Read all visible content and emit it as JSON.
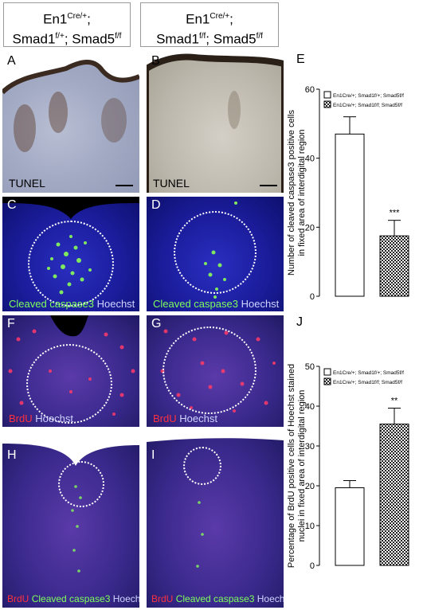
{
  "genotypes": {
    "control": {
      "line1": "En1",
      "sup1": "Cre/+",
      "line1b": ";",
      "line2": "Smad1",
      "sup2": "f/+",
      "line2b": "; Smad5",
      "sup3": "f/f"
    },
    "mutant": {
      "line1": "En1",
      "sup1": "Cre/+",
      "line1b": ";",
      "line2": "Smad1",
      "sup2": "f/f",
      "line2b": "; Smad5",
      "sup3": "f/f"
    }
  },
  "panel_labels": {
    "A": "A",
    "B": "B",
    "C": "C",
    "D": "D",
    "E": "E",
    "F": "F",
    "G": "G",
    "H": "H",
    "I": "I",
    "J": "J"
  },
  "captions": {
    "tunel": "TUNEL",
    "cc3": "Cleaved caspase3",
    "hoechst": "Hoechst",
    "brdu": "BrdU",
    "colors": {
      "green": "#7fff5a",
      "red": "#ff3040",
      "blue": "#d0d4ff"
    }
  },
  "chart_data": [
    {
      "type": "bar",
      "ylabel": "Number of cleaved caspase3 positive cells in fixed area of interdigital region",
      "ylim": [
        0,
        60
      ],
      "yticks": [
        0,
        20,
        40,
        60
      ],
      "series": [
        {
          "name": "En1Cre/+; Smad1f/+; Smad5f/f",
          "value": 47,
          "error": 5,
          "fill": "open"
        },
        {
          "name": "En1Cre/+; Smad1f/f; Smad5f/f",
          "value": 17.5,
          "error": 4.5,
          "fill": "checker"
        }
      ],
      "significance": "***"
    },
    {
      "type": "bar",
      "ylabel": "Percentage of BrdU positive cells of Hoechst stained nuclei in fixed area of interdigital region",
      "ylim": [
        0,
        50
      ],
      "yticks": [
        0,
        10,
        20,
        30,
        40,
        50
      ],
      "series": [
        {
          "name": "En1Cre/+; Smad1f/+; Smad5f/f",
          "value": 19.5,
          "error": 1.8,
          "fill": "open"
        },
        {
          "name": "En1Cre/+; Smad1f/f; Smad5f/f",
          "value": 35.5,
          "error": 4,
          "fill": "checker"
        }
      ],
      "significance": "**"
    }
  ]
}
